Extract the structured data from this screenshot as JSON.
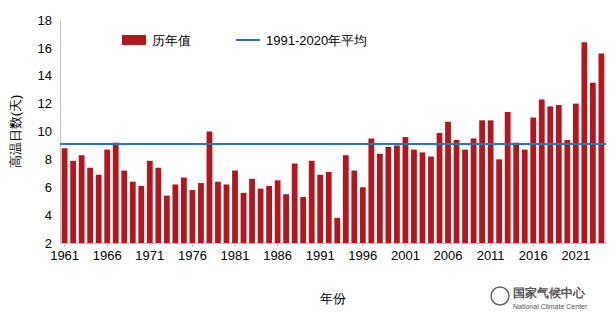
{
  "chart_data": {
    "type": "bar",
    "y_label": "高温日数(天)",
    "x_label": "年份",
    "categories": [
      "1961",
      null,
      null,
      null,
      null,
      "1966",
      null,
      null,
      null,
      null,
      "1971",
      null,
      null,
      null,
      null,
      "1976",
      null,
      null,
      null,
      null,
      "1981",
      null,
      null,
      null,
      null,
      "1986",
      null,
      null,
      null,
      null,
      "1991",
      null,
      null,
      null,
      null,
      "1996",
      null,
      null,
      null,
      null,
      "2001",
      null,
      null,
      null,
      null,
      "2006",
      null,
      null,
      null,
      null,
      "2011",
      null,
      null,
      null,
      null,
      "2016",
      null,
      null,
      null,
      null,
      "2021",
      null,
      null,
      null
    ],
    "series": [
      {
        "name": "历年值",
        "type": "bar",
        "color": "#b0171f",
        "values": [
          8.8,
          7.9,
          8.3,
          7.4,
          6.9,
          8.7,
          9.2,
          7.2,
          6.4,
          6.1,
          7.9,
          7.4,
          5.4,
          6.2,
          6.7,
          5.8,
          6.3,
          10.0,
          6.4,
          6.2,
          7.2,
          5.6,
          6.6,
          5.9,
          6.1,
          6.5,
          5.5,
          7.7,
          5.3,
          7.9,
          6.9,
          7.1,
          3.8,
          8.3,
          7.2,
          6.0,
          9.5,
          8.4,
          8.9,
          9.0,
          9.6,
          8.7,
          8.5,
          8.2,
          9.9,
          10.7,
          9.4,
          8.7,
          9.5,
          10.8,
          10.8,
          8.0,
          11.4,
          9.2,
          8.7,
          11.0,
          12.3,
          11.8,
          11.9,
          9.4,
          12.0,
          16.4,
          13.5,
          15.6
        ]
      },
      {
        "name": "1991-2020年平均",
        "type": "line",
        "color": "#2e75b6",
        "values": [
          9.1,
          9.1,
          9.1,
          9.1,
          9.1,
          9.1,
          9.1,
          9.1,
          9.1,
          9.1,
          9.1,
          9.1,
          9.1,
          9.1,
          9.1,
          9.1,
          9.1,
          9.1,
          9.1,
          9.1,
          9.1,
          9.1,
          9.1,
          9.1,
          9.1,
          9.1,
          9.1,
          9.1,
          9.1,
          9.1,
          9.1,
          9.1,
          9.1,
          9.1,
          9.1,
          9.1,
          9.1,
          9.1,
          9.1,
          9.1,
          9.1,
          9.1,
          9.1,
          9.1,
          9.1,
          9.1,
          9.1,
          9.1,
          9.1,
          9.1,
          9.1,
          9.1,
          9.1,
          9.1,
          9.1,
          9.1,
          9.1,
          9.1,
          9.1,
          9.1,
          9.1,
          9.1,
          9.1,
          9.1
        ]
      }
    ],
    "ylim": [
      2,
      18
    ],
    "yticks": [
      2,
      4,
      6,
      8,
      10,
      12,
      14,
      16,
      18
    ],
    "grid": false,
    "legend": "top",
    "annotations": [
      "国家气候中心",
      "National Climate Center"
    ]
  }
}
